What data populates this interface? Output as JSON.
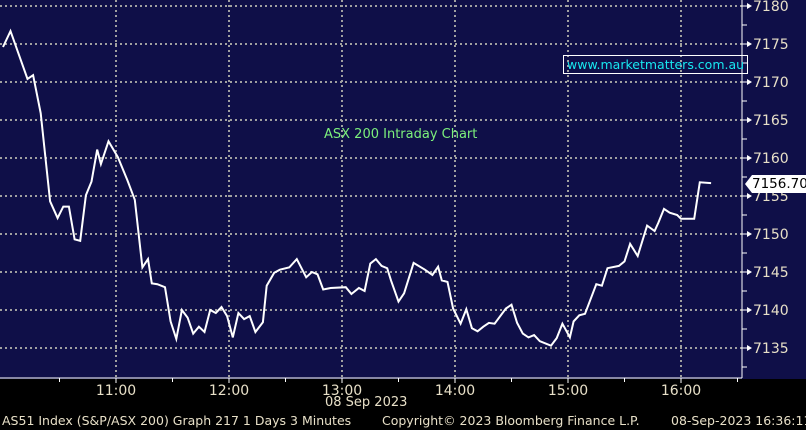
{
  "chart_data": {
    "type": "line",
    "title": "",
    "annotation": "ASX 200 Intraday Chart",
    "watermark": "www.marketmatters.com.au",
    "xlabel": "08 Sep 2023",
    "ylabel": "",
    "x_ticks": [
      "11:00",
      "12:00",
      "13:00",
      "14:00",
      "15:00",
      "16:00"
    ],
    "y_ticks": [
      7135,
      7140,
      7145,
      7150,
      7155,
      7160,
      7165,
      7170,
      7175,
      7180
    ],
    "ylim": [
      7131.5,
      7180.8
    ],
    "xlim": [
      "10:00",
      "16:32"
    ],
    "grid": true,
    "y_axis_side": "right",
    "last_price": "7156.700",
    "colors": {
      "background": "#0f0f48",
      "line": "#ffffff",
      "grid": "#a0a0a0",
      "annotation": "#7cf07c",
      "watermark": "#18e8f0"
    },
    "series": [
      {
        "x": [
          "10:00",
          "10:04",
          "10:13",
          "10:16",
          "10:20",
          "10:25",
          "10:29",
          "10:32",
          "10:35",
          "10:38",
          "10:41",
          "10:44",
          "10:47",
          "10:50",
          "10:52",
          "10:56",
          "11:01",
          "11:06",
          "11:10",
          "11:14",
          "11:17",
          "11:19",
          "11:22",
          "11:26",
          "11:29",
          "11:32",
          "11:35",
          "11:38",
          "11:41",
          "11:44",
          "11:47",
          "11:50",
          "11:53",
          "11:56",
          "11:59",
          "12:02",
          "12:05",
          "12:08",
          "12:11",
          "12:14",
          "12:18",
          "12:20",
          "12:24",
          "12:27",
          "12:32",
          "12:36",
          "12:41",
          "12:44",
          "12:47",
          "12:50",
          "12:54",
          "13:02",
          "13:05",
          "13:09",
          "13:12",
          "13:15",
          "13:18",
          "13:21",
          "13:24",
          "13:26",
          "13:30",
          "13:33",
          "13:38",
          "13:44",
          "13:48",
          "13:51",
          "13:53",
          "13:56",
          "13:59",
          "14:03",
          "14:06",
          "14:09",
          "14:12",
          "14:15",
          "14:18",
          "14:21",
          "14:27",
          "14:30",
          "14:33",
          "14:36",
          "14:39",
          "14:42",
          "14:45",
          "14:51",
          "14:54",
          "14:57",
          "15:01",
          "15:03",
          "15:06",
          "15:09",
          "15:15",
          "15:18",
          "15:21",
          "15:27",
          "15:30",
          "15:33",
          "15:37",
          "15:42",
          "15:46",
          "15:48",
          "15:51",
          "15:54",
          "15:58",
          "16:00",
          "16:07",
          "16:10",
          "16:16"
        ],
        "values": [
          7174.6,
          7176.7,
          7170.4,
          7170.9,
          7165.9,
          7154.3,
          7152.1,
          7153.6,
          7153.6,
          7149.3,
          7149.1,
          7155.1,
          7156.9,
          7161.1,
          7159.2,
          7162.2,
          7160.1,
          7157.1,
          7154.5,
          7145.6,
          7146.7,
          7143.5,
          7143.4,
          7143.0,
          7138.5,
          7136.2,
          7140.0,
          7139.0,
          7136.9,
          7137.8,
          7137.1,
          7140.0,
          7139.6,
          7140.4,
          7139.2,
          7136.4,
          7139.6,
          7138.8,
          7139.2,
          7137.1,
          7138.4,
          7143.2,
          7144.9,
          7145.3,
          7145.6,
          7146.7,
          7144.3,
          7145.0,
          7144.7,
          7142.7,
          7142.9,
          7143.0,
          7142.1,
          7142.9,
          7142.5,
          7146.1,
          7146.7,
          7145.8,
          7145.5,
          7143.9,
          7141.1,
          7142.2,
          7146.2,
          7145.3,
          7144.6,
          7145.7,
          7143.9,
          7143.7,
          7140.2,
          7138.2,
          7140.1,
          7137.6,
          7137.2,
          7137.8,
          7138.3,
          7138.2,
          7140.2,
          7140.7,
          7138.3,
          7136.9,
          7136.4,
          7136.7,
          7135.9,
          7135.3,
          7136.3,
          7138.2,
          7136.4,
          7138.5,
          7139.3,
          7139.5,
          7143.4,
          7143.2,
          7145.5,
          7145.8,
          7146.4,
          7148.7,
          7147.1,
          7151.1,
          7150.4,
          7151.5,
          7153.3,
          7152.8,
          7152.5,
          7152.0,
          7152.0,
          7156.8,
          7156.7
        ]
      }
    ]
  },
  "footer": {
    "left": "AS51 Index (S&P/ASX 200) Graph 217 1 Days 3 Minutes",
    "center": "Copyright© 2023 Bloomberg Finance L.P.",
    "right": "08-Sep-2023 16:36:11"
  }
}
